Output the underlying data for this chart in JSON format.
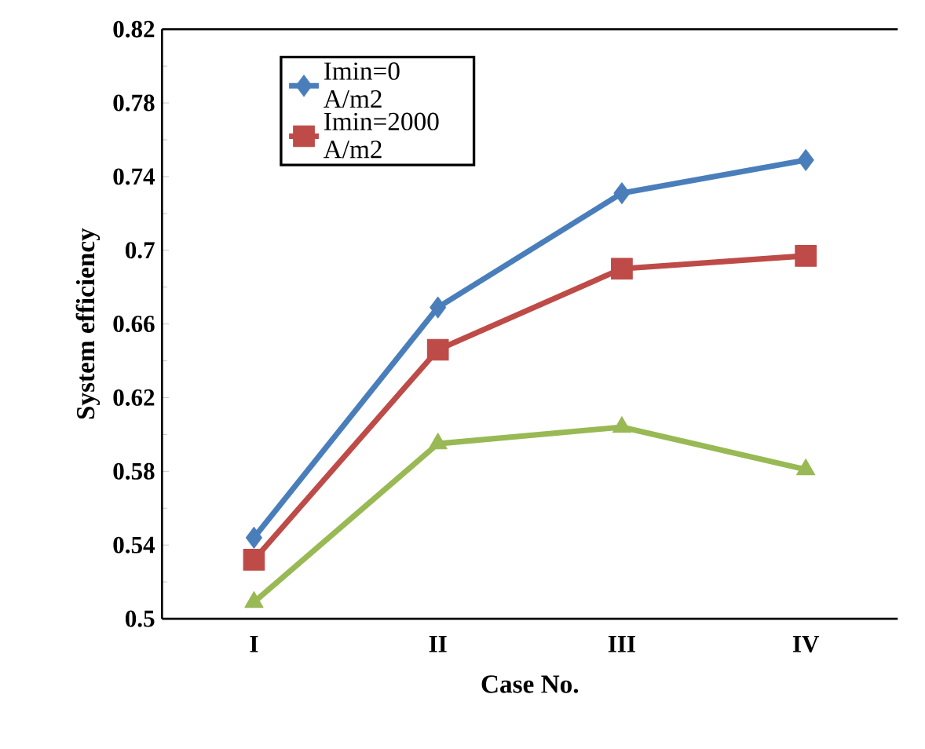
{
  "chart_data": {
    "type": "line",
    "xlabel": "Case No.",
    "ylabel": "System efficiency",
    "categories": [
      "I",
      "II",
      "III",
      "IV"
    ],
    "series": [
      {
        "name": "Imin=0 A/m2",
        "color": "#4a7ebb",
        "marker": "diamond",
        "values": [
          0.544,
          0.669,
          0.731,
          0.749
        ]
      },
      {
        "name": "Imin=2000 A/m2",
        "color": "#be4b48",
        "marker": "square",
        "values": [
          0.532,
          0.646,
          0.69,
          0.697
        ]
      },
      {
        "color": "#98b954",
        "marker": "triangle",
        "values": [
          0.509,
          0.595,
          0.604,
          0.581
        ]
      }
    ],
    "ylim": [
      0.5,
      0.82
    ],
    "yticks": [
      0.5,
      0.54,
      0.58,
      0.62,
      0.66,
      0.7,
      0.74,
      0.78,
      0.82
    ],
    "legend": "top left",
    "grid": false
  }
}
